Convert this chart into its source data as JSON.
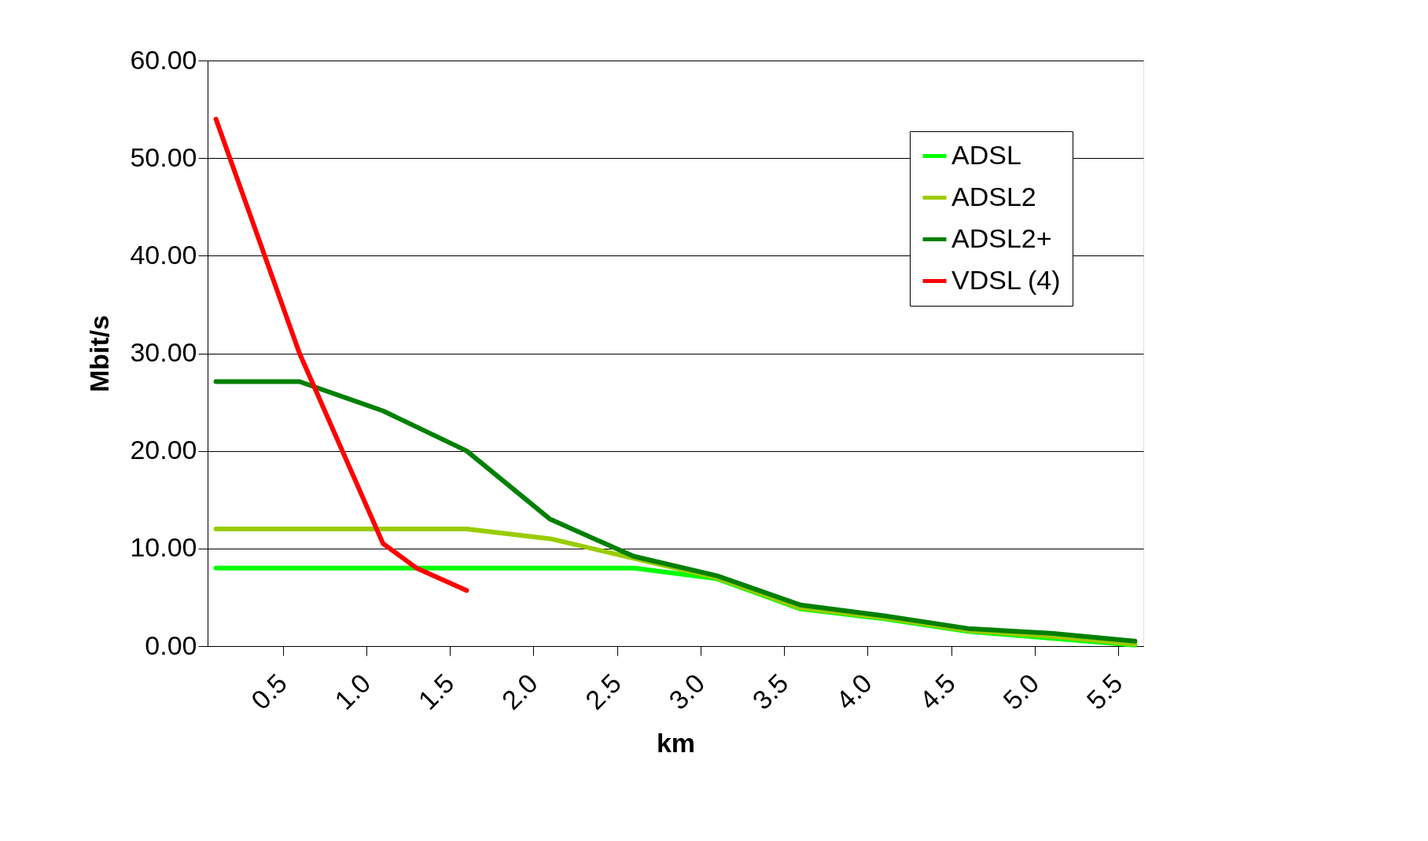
{
  "chart_data": {
    "type": "line",
    "xlabel": "km",
    "ylabel": "Mbit/s",
    "xlim": [
      0.05,
      5.65
    ],
    "xticks": [
      {
        "value": 0.5,
        "label": "0.5"
      },
      {
        "value": 1.0,
        "label": "1.0"
      },
      {
        "value": 1.5,
        "label": "1.5"
      },
      {
        "value": 2.0,
        "label": "2.0"
      },
      {
        "value": 2.5,
        "label": "2.5"
      },
      {
        "value": 3.0,
        "label": "3.0"
      },
      {
        "value": 3.5,
        "label": "3.5"
      },
      {
        "value": 4.0,
        "label": "4.0"
      },
      {
        "value": 4.5,
        "label": "4.5"
      },
      {
        "value": 5.0,
        "label": "5.0"
      },
      {
        "value": 5.5,
        "label": "5.5"
      }
    ],
    "ylim": [
      0,
      60
    ],
    "yticks": [
      {
        "value": 0,
        "label": "0.00"
      },
      {
        "value": 10,
        "label": "10.00"
      },
      {
        "value": 20,
        "label": "20.00"
      },
      {
        "value": 30,
        "label": "30.00"
      },
      {
        "value": 40,
        "label": "40.00"
      },
      {
        "value": 50,
        "label": "50.00"
      },
      {
        "value": 60,
        "label": "60.00"
      }
    ],
    "grid": "y",
    "legend": "top right",
    "marker": "none",
    "line_style": "solid",
    "series": [
      {
        "name": "ADSL",
        "color": "#00ff00",
        "x": [
          0.1,
          0.6,
          1.1,
          1.6,
          2.1,
          2.6,
          3.1,
          3.6,
          4.1,
          4.6,
          5.1,
          5.6
        ],
        "values": [
          8,
          8,
          8,
          8,
          8,
          8,
          6.9,
          3.8,
          2.8,
          1.5,
          0.8,
          0.1
        ]
      },
      {
        "name": "ADSL2",
        "color": "#99cc00",
        "x": [
          0.1,
          0.6,
          1.1,
          1.6,
          2.1,
          2.6,
          3.1,
          3.6,
          4.1,
          4.6,
          5.1,
          5.6
        ],
        "values": [
          12,
          12,
          12,
          12,
          11,
          9,
          7,
          3.9,
          2.9,
          1.6,
          1,
          0.2
        ]
      },
      {
        "name": "ADSL2+",
        "color": "#008000",
        "x": [
          0.1,
          0.6,
          1.1,
          1.6,
          2.1,
          2.6,
          3.1,
          3.6,
          4.1,
          4.6,
          5.1,
          5.6
        ],
        "values": [
          27.1,
          27.1,
          24.1,
          20,
          13,
          9.2,
          7.2,
          4.2,
          3.1,
          1.8,
          1.3,
          0.5
        ]
      },
      {
        "name": "VDSL (4)",
        "color": "#ff0000",
        "x": [
          0.1,
          0.6,
          1.1,
          1.3,
          1.6
        ],
        "values": [
          54,
          30,
          10.5,
          8,
          5.7
        ]
      }
    ]
  }
}
